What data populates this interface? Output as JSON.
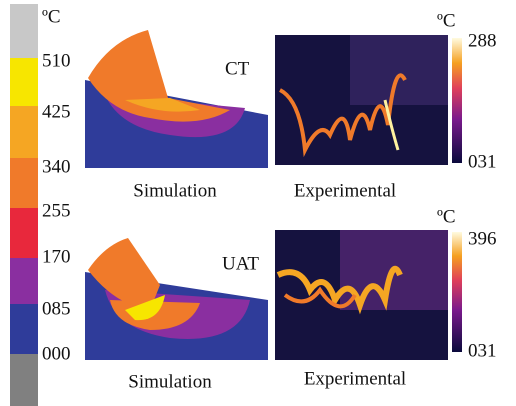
{
  "scale": {
    "unit": "ºC",
    "labels": [
      "510",
      "425",
      "340",
      "255",
      "170",
      "085",
      "000"
    ]
  },
  "panels": [
    {
      "label": "CT",
      "simulation_caption": "Simulation",
      "experimental_caption": "Experimental",
      "colorbar": {
        "unit": "ºC",
        "max": "288",
        "min": "031"
      }
    },
    {
      "label": "UAT",
      "simulation_caption": "Simulation",
      "experimental_caption": "Experimental",
      "colorbar": {
        "unit": "ºC",
        "max": "396",
        "min": "031"
      }
    }
  ]
}
